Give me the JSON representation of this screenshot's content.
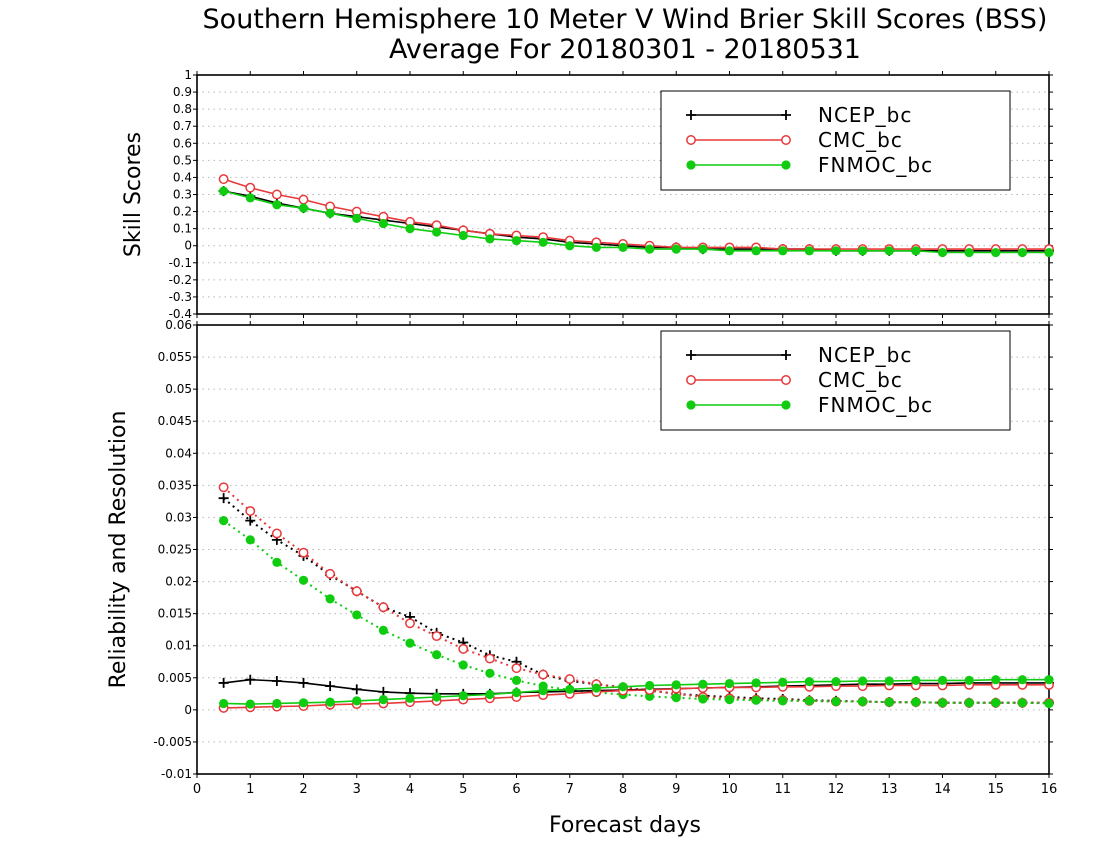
{
  "title": {
    "line1": "Southern Hemisphere 10 Meter V Wind Brier Skill Scores (BSS)",
    "line2": "Average For 20180301 - 20180531"
  },
  "xlabel": "Forecast days",
  "colors": {
    "NCEP_bc": "#000000",
    "CMC_bc": "#e8383a",
    "FNMOC_bc": "#10cc10"
  },
  "chart_data": [
    {
      "type": "line",
      "ylabel": "Skill Scores",
      "xlim": [
        0,
        16
      ],
      "ylim": [
        -0.4,
        1
      ],
      "x_ticks": [
        0,
        1,
        2,
        3,
        4,
        5,
        6,
        7,
        8,
        9,
        10,
        11,
        12,
        13,
        14,
        15,
        16
      ],
      "y_ticks": [
        -0.4,
        -0.3,
        -0.2,
        -0.1,
        0,
        0.1,
        0.2,
        0.3,
        0.4,
        0.5,
        0.6,
        0.7,
        0.8,
        0.9,
        1
      ],
      "y_tick_labels": [
        "-0.4",
        "-0.3",
        "-0.2",
        "-0.1",
        "0",
        "0.1",
        "0.2",
        "0.3",
        "0.4",
        "0.5",
        "0.6",
        "0.7",
        "0.8",
        "0.9",
        "1"
      ],
      "grid": true,
      "legend": "top-right",
      "x": [
        0.5,
        1,
        1.5,
        2,
        2.5,
        3,
        3.5,
        4,
        4.5,
        5,
        5.5,
        6,
        6.5,
        7,
        7.5,
        8,
        8.5,
        9,
        9.5,
        10,
        10.5,
        11,
        11.5,
        12,
        12.5,
        13,
        13.5,
        14,
        14.5,
        15,
        15.5,
        16
      ],
      "series": [
        {
          "name": "NCEP_bc",
          "style": "solid",
          "marker": "plus",
          "values": [
            0.32,
            0.29,
            0.25,
            0.22,
            0.19,
            0.17,
            0.15,
            0.13,
            0.11,
            0.09,
            0.07,
            0.05,
            0.04,
            0.02,
            0.01,
            0.0,
            -0.01,
            -0.01,
            -0.02,
            -0.02,
            -0.02,
            -0.02,
            -0.02,
            -0.03,
            -0.03,
            -0.03,
            -0.03,
            -0.03,
            -0.03,
            -0.03,
            -0.03,
            -0.03
          ]
        },
        {
          "name": "CMC_bc",
          "style": "solid",
          "marker": "open-circle",
          "values": [
            0.39,
            0.34,
            0.3,
            0.27,
            0.23,
            0.2,
            0.17,
            0.14,
            0.12,
            0.09,
            0.07,
            0.06,
            0.05,
            0.03,
            0.02,
            0.01,
            0.0,
            -0.01,
            -0.01,
            -0.01,
            -0.01,
            -0.02,
            -0.02,
            -0.02,
            -0.02,
            -0.02,
            -0.02,
            -0.02,
            -0.02,
            -0.02,
            -0.02,
            -0.02
          ]
        },
        {
          "name": "FNMOC_bc",
          "style": "solid",
          "marker": "filled-circle",
          "values": [
            0.32,
            0.28,
            0.24,
            0.22,
            0.19,
            0.16,
            0.13,
            0.1,
            0.08,
            0.06,
            0.04,
            0.03,
            0.02,
            0.0,
            -0.01,
            -0.01,
            -0.02,
            -0.02,
            -0.02,
            -0.03,
            -0.03,
            -0.03,
            -0.03,
            -0.03,
            -0.03,
            -0.03,
            -0.03,
            -0.04,
            -0.04,
            -0.04,
            -0.04,
            -0.04
          ]
        }
      ]
    },
    {
      "type": "line",
      "ylabel": "Reliability and Resolution",
      "xlabel": "Forecast days",
      "xlim": [
        0,
        16
      ],
      "ylim": [
        -0.01,
        0.06
      ],
      "x_ticks": [
        0,
        1,
        2,
        3,
        4,
        5,
        6,
        7,
        8,
        9,
        10,
        11,
        12,
        13,
        14,
        15,
        16
      ],
      "y_ticks": [
        -0.01,
        -0.005,
        0,
        0.005,
        0.01,
        0.015,
        0.02,
        0.025,
        0.03,
        0.035,
        0.04,
        0.045,
        0.05,
        0.055,
        0.06
      ],
      "y_tick_labels": [
        "-0.01",
        "-0.005",
        "0",
        "0.005",
        "0.01",
        "0.015",
        "0.02",
        "0.025",
        "0.03",
        "0.035",
        "0.04",
        "0.045",
        "0.05",
        "0.055",
        "0.06"
      ],
      "grid": true,
      "legend": "top-right",
      "x": [
        0.5,
        1,
        1.5,
        2,
        2.5,
        3,
        3.5,
        4,
        4.5,
        5,
        5.5,
        6,
        6.5,
        7,
        7.5,
        8,
        8.5,
        9,
        9.5,
        10,
        10.5,
        11,
        11.5,
        12,
        12.5,
        13,
        13.5,
        14,
        14.5,
        15,
        15.5,
        16
      ],
      "series": [
        {
          "name": "NCEP_bc",
          "legend": true,
          "style": "dotted",
          "marker": "plus",
          "values": [
            0.033,
            0.0295,
            0.0265,
            0.024,
            0.021,
            0.0185,
            0.016,
            0.0145,
            0.012,
            0.0105,
            0.0085,
            0.0075,
            0.0055,
            0.0045,
            0.004,
            0.0035,
            0.003,
            0.0025,
            0.0022,
            0.002,
            0.0018,
            0.0017,
            0.0015,
            0.0014,
            0.0013,
            0.0012,
            0.0012,
            0.0011,
            0.0011,
            0.0011,
            0.0011,
            0.0011
          ]
        },
        {
          "name": "CMC_bc",
          "legend": true,
          "style": "dotted",
          "marker": "open-circle",
          "values": [
            0.0347,
            0.031,
            0.0275,
            0.0245,
            0.0212,
            0.0185,
            0.016,
            0.0135,
            0.0115,
            0.0095,
            0.008,
            0.0065,
            0.0055,
            0.0048,
            0.004,
            0.0035,
            0.003,
            0.0025,
            0.002,
            0.0018,
            0.0016,
            0.0015,
            0.0014,
            0.0013,
            0.0013,
            0.0012,
            0.0012,
            0.0011,
            0.0011,
            0.0011,
            0.0011,
            0.0011
          ]
        },
        {
          "name": "FNMOC_bc",
          "legend": true,
          "style": "dotted",
          "marker": "filled-circle",
          "values": [
            0.0295,
            0.0265,
            0.023,
            0.0202,
            0.0173,
            0.0148,
            0.0124,
            0.0104,
            0.0086,
            0.007,
            0.0057,
            0.0046,
            0.0037,
            0.0031,
            0.0027,
            0.0024,
            0.0021,
            0.0019,
            0.0017,
            0.0016,
            0.0015,
            0.0014,
            0.0014,
            0.0013,
            0.0013,
            0.0012,
            0.0012,
            0.0011,
            0.0011,
            0.0011,
            0.0011,
            0.001
          ]
        },
        {
          "name": "NCEP_bc",
          "legend": false,
          "style": "solid",
          "marker": "plus",
          "values": [
            0.0042,
            0.0047,
            0.0045,
            0.0042,
            0.0037,
            0.0032,
            0.0028,
            0.0026,
            0.0025,
            0.0025,
            0.0025,
            0.0027,
            0.0028,
            0.0029,
            0.003,
            0.0031,
            0.0032,
            0.0033,
            0.0034,
            0.0035,
            0.0036,
            0.0037,
            0.0038,
            0.0039,
            0.004,
            0.004,
            0.0041,
            0.0041,
            0.0042,
            0.0042,
            0.0042,
            0.0042
          ]
        },
        {
          "name": "CMC_bc",
          "legend": false,
          "style": "solid",
          "marker": "open-circle",
          "values": [
            0.0003,
            0.0004,
            0.0005,
            0.0006,
            0.0008,
            0.0009,
            0.001,
            0.0012,
            0.0014,
            0.0016,
            0.0018,
            0.002,
            0.0023,
            0.0025,
            0.0028,
            0.003,
            0.0031,
            0.0033,
            0.0034,
            0.0035,
            0.0035,
            0.0036,
            0.0036,
            0.0037,
            0.0037,
            0.0038,
            0.0038,
            0.0038,
            0.0039,
            0.0039,
            0.0039,
            0.0039
          ]
        },
        {
          "name": "FNMOC_bc",
          "legend": false,
          "style": "solid",
          "marker": "filled-circle",
          "values": [
            0.001,
            0.0009,
            0.001,
            0.0011,
            0.0012,
            0.0014,
            0.0016,
            0.0018,
            0.002,
            0.0022,
            0.0024,
            0.0027,
            0.003,
            0.0032,
            0.0034,
            0.0036,
            0.0038,
            0.0039,
            0.004,
            0.0041,
            0.0042,
            0.0043,
            0.0044,
            0.0044,
            0.0045,
            0.0045,
            0.0046,
            0.0046,
            0.0046,
            0.0047,
            0.0047,
            0.0047
          ]
        }
      ]
    }
  ]
}
